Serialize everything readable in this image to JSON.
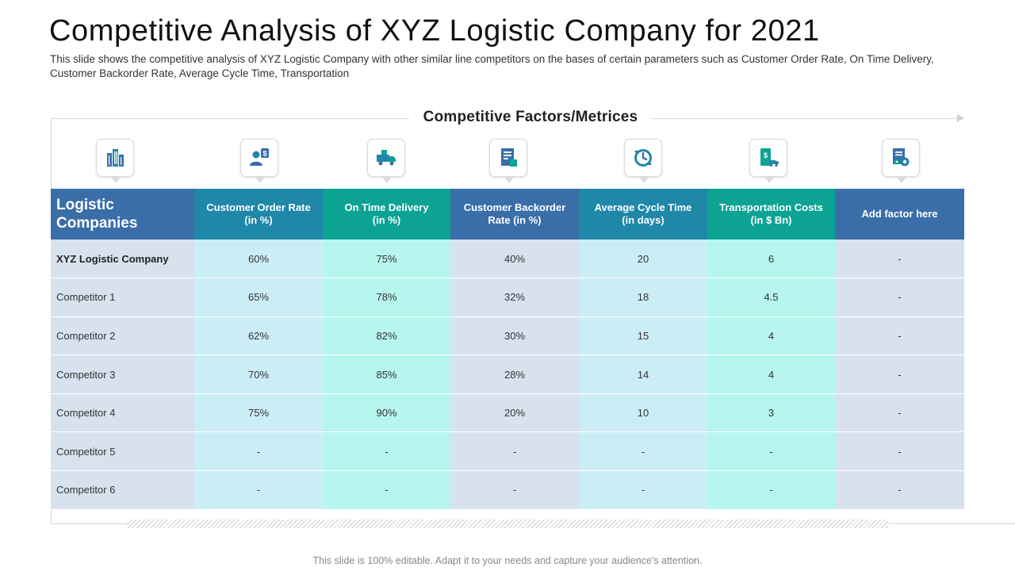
{
  "title": "Competitive Analysis of XYZ Logistic Company for 2021",
  "subtitle": "This slide shows the competitive analysis of XYZ Logistic Company with other similar line competitors on the bases of certain parameters such as Customer Order Rate, On Time Delivery, Customer Backorder Rate, Average Cycle Time, Transportation",
  "factors_label": "Competitive Factors/Metrices",
  "icons": [
    "buildings-icon",
    "customer-dollar-icon",
    "delivery-truck-icon",
    "document-report-icon",
    "cycle-clock-icon",
    "transport-cost-icon",
    "document-gear-icon"
  ],
  "colors": {
    "navy": "#3a6ea9",
    "blue": "#1f87a8",
    "teal": "#0da394",
    "cell_navy": "#d7e2ee",
    "cell_blue": "#cbeef6",
    "cell_teal": "#b6f6ef"
  },
  "table": {
    "company_header": "Logistic Companies",
    "headers": [
      {
        "line1": "Customer Order Rate",
        "line2": "(in %)"
      },
      {
        "line1": "On Time Delivery",
        "line2": "(in %)"
      },
      {
        "line1": "Customer Backorder",
        "line2": "Rate (in %)"
      },
      {
        "line1": "Average Cycle Time",
        "line2": "(in days)"
      },
      {
        "line1": "Transportation Costs",
        "line2": "(in $ Bn)"
      },
      {
        "line1": "Add factor here",
        "line2": ""
      }
    ],
    "rows": [
      {
        "company": "XYZ Logistic Company",
        "values": [
          "60%",
          "75%",
          "40%",
          "20",
          "6",
          "-"
        ]
      },
      {
        "company": "Competitor 1",
        "values": [
          "65%",
          "78%",
          "32%",
          "18",
          "4.5",
          "-"
        ]
      },
      {
        "company": "Competitor 2",
        "values": [
          "62%",
          "82%",
          "30%",
          "15",
          "4",
          "-"
        ]
      },
      {
        "company": "Competitor 3",
        "values": [
          "70%",
          "85%",
          "28%",
          "14",
          "4",
          "-"
        ]
      },
      {
        "company": "Competitor 4",
        "values": [
          "75%",
          "90%",
          "20%",
          "10",
          "3",
          "-"
        ]
      },
      {
        "company": "Competitor 5",
        "values": [
          "-",
          "-",
          "-",
          "-",
          "-",
          "-"
        ]
      },
      {
        "company": "Competitor 6",
        "values": [
          "-",
          "-",
          "-",
          "-",
          "-",
          "-"
        ]
      }
    ]
  },
  "footer": "This slide is 100% editable. Adapt it to your needs and capture your audience's attention."
}
